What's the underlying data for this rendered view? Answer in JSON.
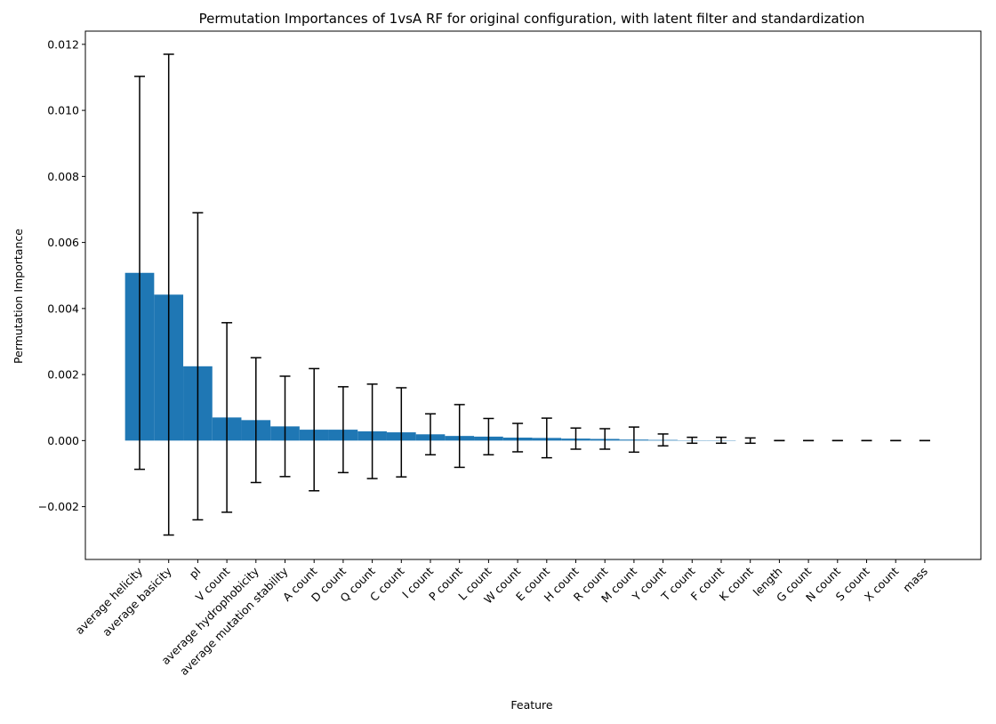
{
  "chart_data": {
    "type": "bar",
    "title": "Permutation Importances of 1vsA RF for original configuration, with latent filter and standardization",
    "xlabel": "Feature",
    "ylabel": "Permutation Importance",
    "ylim": [
      -0.0036,
      0.0124
    ],
    "yticks": [
      -0.002,
      0.0,
      0.002,
      0.004,
      0.006,
      0.008,
      0.01,
      0.012
    ],
    "ytick_labels": [
      "−0.002",
      "0.000",
      "0.002",
      "0.004",
      "0.006",
      "0.008",
      "0.010",
      "0.012"
    ],
    "bar_color": "#1f77b4",
    "error_color": "#000000",
    "grid": false,
    "categories": [
      "average helicity",
      "average basicity",
      "pI",
      "V count",
      "average hydrophobicity",
      "average mutation stability",
      "A count",
      "D count",
      "Q count",
      "C count",
      "I count",
      "P count",
      "L count",
      "W count",
      "E count",
      "H count",
      "R count",
      "M count",
      "Y count",
      "T count",
      "F count",
      "K count",
      "length",
      "G count",
      "N count",
      "S count",
      "X count",
      "mass"
    ],
    "values": [
      0.00508,
      0.00442,
      0.00225,
      0.0007,
      0.00062,
      0.00043,
      0.00033,
      0.00033,
      0.00028,
      0.00025,
      0.00019,
      0.00014,
      0.00012,
      9e-05,
      8e-05,
      6e-05,
      5e-05,
      3e-05,
      2e-05,
      1e-05,
      1e-05,
      0.0,
      0.0,
      0.0,
      0.0,
      0.0,
      0.0,
      0.0
    ],
    "errors": [
      0.00595,
      0.00728,
      0.00465,
      0.00287,
      0.00189,
      0.00152,
      0.00185,
      0.0013,
      0.00143,
      0.00135,
      0.00062,
      0.00095,
      0.00055,
      0.00043,
      0.0006,
      0.00032,
      0.00031,
      0.00038,
      0.00018,
      9e-05,
      9e-05,
      8e-05,
      0.0,
      0.0,
      0.0,
      0.0,
      0.0,
      0.0
    ]
  }
}
